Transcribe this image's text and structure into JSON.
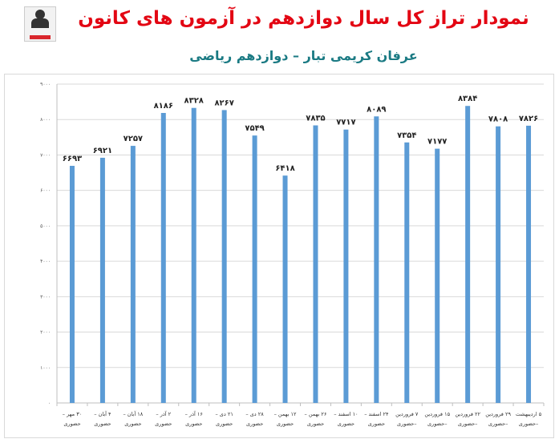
{
  "header": {
    "title": "نمودار تراز کل سال دوازدهم در آزمون های کانون",
    "subtitle": "عرفان کریمی تبار – دوازدهم ریاضی"
  },
  "logo": {
    "text": ""
  },
  "chart_data": {
    "type": "bar",
    "title": "نمودار تراز کل سال دوازدهم در آزمون های کانون",
    "subtitle": "عرفان کریمی تبار – دوازدهم ریاضی",
    "ylim": [
      0,
      9000
    ],
    "yticks": [
      0,
      1000,
      2000,
      3000,
      4000,
      5000,
      6000,
      7000,
      8000,
      9000
    ],
    "ytick_labels": [
      "۰",
      "۱۰۰۰",
      "۲۰۰۰",
      "۳۰۰۰",
      "۴۰۰۰",
      "۵۰۰۰",
      "۶۰۰۰",
      "۷۰۰۰",
      "۸۰۰۰",
      "۹۰۰۰"
    ],
    "grid": true,
    "legend": "none",
    "bar_color": "#5b9bd5",
    "categories": [
      [
        "۳۰ مهر –",
        "حضوری"
      ],
      [
        "۴ آبان –",
        "حضوری"
      ],
      [
        "۱۸ آبان –",
        "حضوری"
      ],
      [
        "۲ آذر –",
        "حضوری"
      ],
      [
        "۱۶ آذر –",
        "حضوری"
      ],
      [
        "۲۱ دی –",
        "حضوری"
      ],
      [
        "۲۸ دی –",
        "حضوری"
      ],
      [
        "۱۲ بهمن –",
        "حضوری"
      ],
      [
        "۲۶ بهمن –",
        "حضوری"
      ],
      [
        "۱۰ اسفند –",
        "حضوری"
      ],
      [
        "۲۴ اسفند –",
        "حضوری"
      ],
      [
        "۷ فروردین",
        "–حضوری"
      ],
      [
        "۱۵ فروردین",
        "–حضوری"
      ],
      [
        "۲۲ فروردین",
        "–حضوری"
      ],
      [
        "۲۹ فروردین",
        "–حضوری"
      ],
      [
        "۵ اردیبهشت",
        "–حضوری"
      ]
    ],
    "values": [
      6693,
      6921,
      7257,
      8186,
      8328,
      8267,
      7549,
      6418,
      7835,
      7717,
      8089,
      7354,
      7177,
      8384,
      7808,
      7826
    ],
    "value_labels": [
      "۶۶۹۳",
      "۶۹۲۱",
      "۷۲۵۷",
      "۸۱۸۶",
      "۸۳۲۸",
      "۸۲۶۷",
      "۷۵۴۹",
      "۶۴۱۸",
      "۷۸۳۵",
      "۷۷۱۷",
      "۸۰۸۹",
      "۷۳۵۴",
      "۷۱۷۷",
      "۸۳۸۴",
      "۷۸۰۸",
      "۷۸۲۶"
    ]
  }
}
